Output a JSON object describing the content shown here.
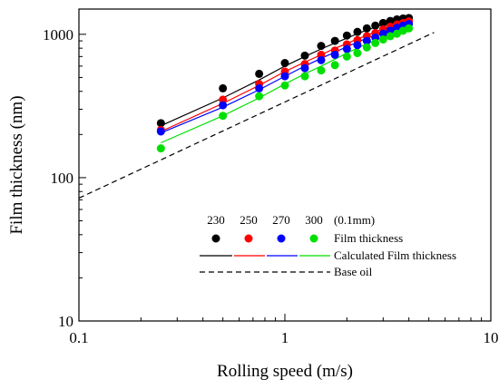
{
  "chart_data": {
    "type": "scatter",
    "xlabel": "Rolling speed (m/s)",
    "ylabel": "Film thickness (nm)",
    "x_scale": "log",
    "y_scale": "log",
    "xlim": [
      0.1,
      10
    ],
    "ylim": [
      10,
      1500
    ],
    "x_ticks": [
      {
        "value": 0.1,
        "label": "0.1"
      },
      {
        "value": 1,
        "label": "1"
      },
      {
        "value": 10,
        "label": "10"
      }
    ],
    "y_ticks": [
      {
        "value": 10,
        "label": "10"
      },
      {
        "value": 100,
        "label": "100"
      },
      {
        "value": 1000,
        "label": "1000"
      }
    ],
    "grid": false,
    "legend": {
      "placement": "bottom-right",
      "header_labels": [
        "230",
        "250",
        "270",
        "300"
      ],
      "unit_label": "(0.1mm)",
      "markers_label": "Film thickness",
      "lines_label": "Calculated Film thickness",
      "base_label": "Base oil"
    },
    "series": [
      {
        "color": "#000000",
        "x": [
          0.25,
          0.5,
          0.75,
          1.0,
          1.25,
          1.5,
          1.75,
          2.0,
          2.25,
          2.5,
          2.75,
          3.0,
          3.25,
          3.5,
          3.75,
          4.0
        ],
        "measured": [
          240,
          420,
          530,
          630,
          710,
          830,
          900,
          980,
          1040,
          1100,
          1150,
          1200,
          1240,
          1270,
          1290,
          1300
        ],
        "calculated": [
          230,
          360,
          480,
          600,
          700,
          790,
          870,
          940,
          1010,
          1070,
          1120,
          1170,
          1210,
          1240,
          1270,
          1290
        ]
      },
      {
        "color": "#ff0000",
        "x": [
          0.25,
          0.5,
          0.75,
          1.0,
          1.25,
          1.5,
          1.75,
          2.0,
          2.25,
          2.5,
          2.75,
          3.0,
          3.25,
          3.5,
          3.75,
          4.0
        ],
        "measured": [
          215,
          350,
          450,
          550,
          620,
          720,
          770,
          850,
          910,
          970,
          1020,
          1080,
          1130,
          1170,
          1200,
          1230
        ],
        "calculated": [
          210,
          330,
          440,
          550,
          640,
          720,
          800,
          860,
          930,
          980,
          1040,
          1090,
          1130,
          1160,
          1200,
          1220
        ]
      },
      {
        "color": "#0000ff",
        "x": [
          0.25,
          0.5,
          0.75,
          1.0,
          1.25,
          1.5,
          1.75,
          2.0,
          2.25,
          2.5,
          2.75,
          3.0,
          3.25,
          3.5,
          3.75,
          4.0
        ],
        "measured": [
          210,
          320,
          420,
          510,
          580,
          660,
          720,
          790,
          840,
          900,
          950,
          1010,
          1060,
          1110,
          1150,
          1180
        ],
        "calculated": [
          205,
          310,
          410,
          510,
          600,
          680,
          750,
          820,
          880,
          940,
          990,
          1040,
          1080,
          1120,
          1150,
          1180
        ]
      },
      {
        "color": "#00e000",
        "x": [
          0.25,
          0.5,
          0.75,
          1.0,
          1.25,
          1.5,
          1.75,
          2.0,
          2.25,
          2.5,
          2.75,
          3.0,
          3.25,
          3.5,
          3.75,
          4.0
        ],
        "measured": [
          160,
          270,
          370,
          440,
          510,
          560,
          610,
          700,
          740,
          810,
          870,
          920,
          970,
          1010,
          1060,
          1100
        ],
        "calculated": [
          175,
          270,
          360,
          450,
          530,
          600,
          670,
          740,
          800,
          860,
          910,
          960,
          1010,
          1050,
          1080,
          1110
        ]
      }
    ],
    "base_oil": {
      "color": "#000000",
      "x": [
        0.1,
        5.3
      ],
      "y": [
        72,
        1030
      ]
    }
  }
}
